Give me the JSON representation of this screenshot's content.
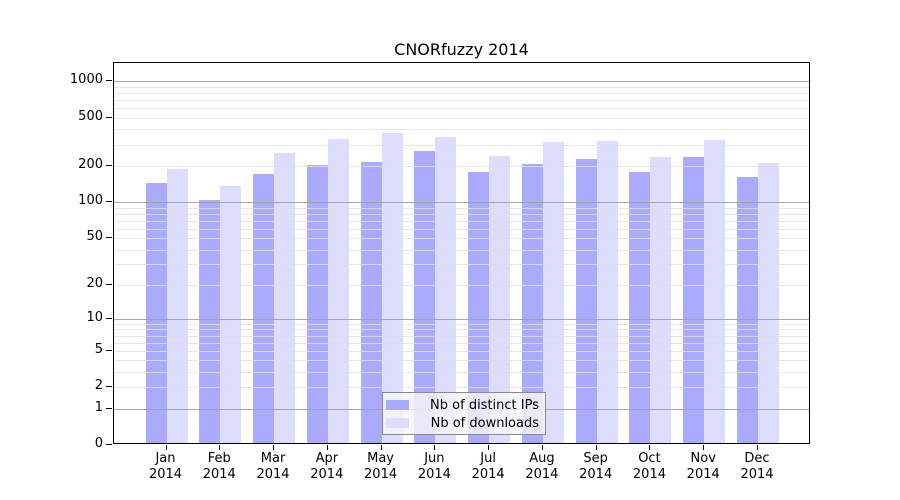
{
  "title": "CNORfuzzy 2014",
  "colors": {
    "distinct_ips_bar": "#aaaaff",
    "downloads_bar": "#ddddff",
    "axis": "#000000",
    "major_gridline": "#9e9ea3",
    "minor_gridline": "#dedee6"
  },
  "legend": {
    "items": [
      {
        "label": "Nb of distinct IPs",
        "color": "#aaaaff"
      },
      {
        "label": "Nb of downloads",
        "color": "#ddddff"
      }
    ]
  },
  "y_axis": {
    "scale": "log10(1+value)",
    "tick_labels": [
      "0",
      "1",
      "2",
      "5",
      "10",
      "20",
      "50",
      "100",
      "200",
      "500",
      "1000"
    ],
    "tick_values": [
      0,
      1,
      2,
      5,
      10,
      20,
      50,
      100,
      200,
      500,
      1000
    ]
  },
  "x_axis": {
    "months": [
      "Jan",
      "Feb",
      "Mar",
      "Apr",
      "May",
      "Jun",
      "Jul",
      "Aug",
      "Sep",
      "Oct",
      "Nov",
      "Dec"
    ],
    "year": "2014"
  },
  "chart_data": {
    "type": "bar",
    "title": "CNORfuzzy 2014",
    "categories": [
      "Jan 2014",
      "Feb 2014",
      "Mar 2014",
      "Apr 2014",
      "May 2014",
      "Jun 2014",
      "Jul 2014",
      "Aug 2014",
      "Sep 2014",
      "Oct 2014",
      "Nov 2014",
      "Dec 2014"
    ],
    "series": [
      {
        "name": "Nb of distinct IPs",
        "color": "#aaaaff",
        "values": [
          145,
          105,
          172,
          205,
          214,
          267,
          178,
          209,
          230,
          178,
          237,
          162
        ]
      },
      {
        "name": "Nb of downloads",
        "color": "#ddddff",
        "values": [
          189,
          136,
          258,
          332,
          375,
          348,
          243,
          315,
          321,
          235,
          326,
          210
        ]
      }
    ],
    "xlabel": "",
    "ylabel": "",
    "y_scale": "log1p",
    "y_ticks": [
      0,
      1,
      2,
      5,
      10,
      20,
      50,
      100,
      200,
      500,
      1000
    ],
    "ylim": [
      0,
      1400
    ],
    "grid": true,
    "legend_position": "inside-bottom-center"
  }
}
